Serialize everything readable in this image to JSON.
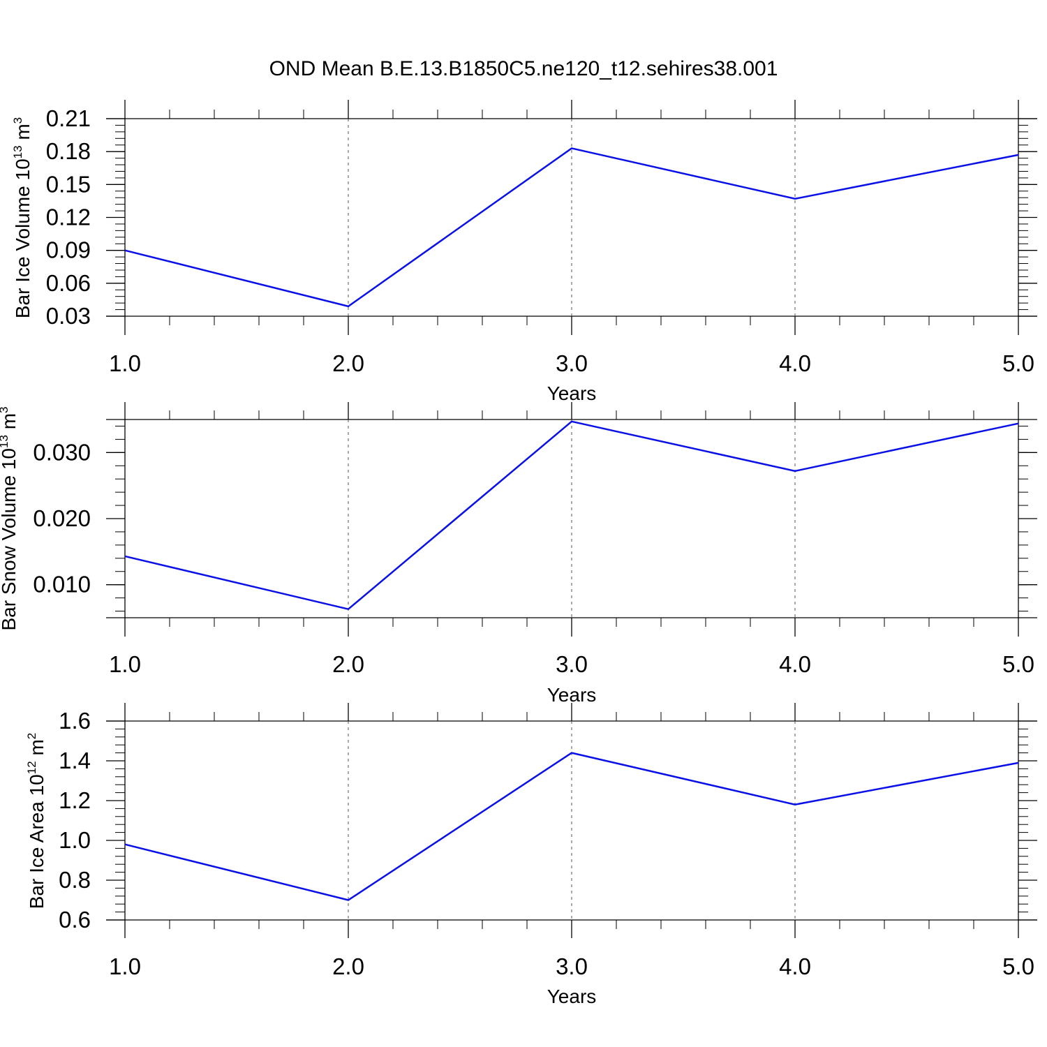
{
  "title": "OND Mean B.E.13.B1850C5.ne120_t12.sehires38.001",
  "colors": {
    "line": "#0a10e8",
    "axis": "#000000",
    "grid": "#555555"
  },
  "chart_data": [
    {
      "type": "line",
      "title": "",
      "xlabel": "Years",
      "ylabel": {
        "text": "Bar Ice Volume 10",
        "exp": "13",
        "unit": " m",
        "unit_exp": "3"
      },
      "x": [
        1.0,
        2.0,
        3.0,
        4.0,
        5.0
      ],
      "xlim": [
        1.0,
        5.0
      ],
      "x_ticks": [
        "1.0",
        "2.0",
        "3.0",
        "4.0",
        "5.0"
      ],
      "ylim": [
        0.03,
        0.21
      ],
      "y_ticks": [
        0.03,
        0.06,
        0.09,
        0.12,
        0.15,
        0.18,
        0.21
      ],
      "y_tick_labels": [
        "0.03",
        "0.06",
        "0.09",
        "0.12",
        "0.15",
        "0.18",
        "0.21"
      ],
      "series": [
        {
          "values": [
            0.09,
            0.039,
            0.183,
            0.137,
            0.177
          ]
        }
      ],
      "vertical_grid": "dashed at major x ticks"
    },
    {
      "type": "line",
      "title": "",
      "xlabel": "Years",
      "ylabel": {
        "text": "Bar Snow Volume 10",
        "exp": "13",
        "unit": " m",
        "unit_exp": "3"
      },
      "x": [
        1.0,
        2.0,
        3.0,
        4.0,
        5.0
      ],
      "xlim": [
        1.0,
        5.0
      ],
      "x_ticks": [
        "1.0",
        "2.0",
        "3.0",
        "4.0",
        "5.0"
      ],
      "ylim": [
        0.005,
        0.035
      ],
      "y_ticks": [
        0.01,
        0.02,
        0.03
      ],
      "y_tick_labels": [
        "0.010",
        "0.020",
        "0.030"
      ],
      "series": [
        {
          "values": [
            0.0143,
            0.0063,
            0.0347,
            0.0272,
            0.0344
          ]
        }
      ],
      "vertical_grid": "dashed at major x ticks"
    },
    {
      "type": "line",
      "title": "",
      "xlabel": "Years",
      "ylabel": {
        "text": "Bar Ice Area 10",
        "exp": "12",
        "unit": " m",
        "unit_exp": "2"
      },
      "x": [
        1.0,
        2.0,
        3.0,
        4.0,
        5.0
      ],
      "xlim": [
        1.0,
        5.0
      ],
      "x_ticks": [
        "1.0",
        "2.0",
        "3.0",
        "4.0",
        "5.0"
      ],
      "ylim": [
        0.6,
        1.6
      ],
      "y_ticks": [
        0.6,
        0.8,
        1.0,
        1.2,
        1.4,
        1.6
      ],
      "y_tick_labels": [
        "0.6",
        "0.8",
        "1.0",
        "1.2",
        "1.4",
        "1.6"
      ],
      "series": [
        {
          "values": [
            0.98,
            0.7,
            1.44,
            1.18,
            1.39
          ]
        }
      ],
      "vertical_grid": "dashed at major x ticks"
    }
  ]
}
